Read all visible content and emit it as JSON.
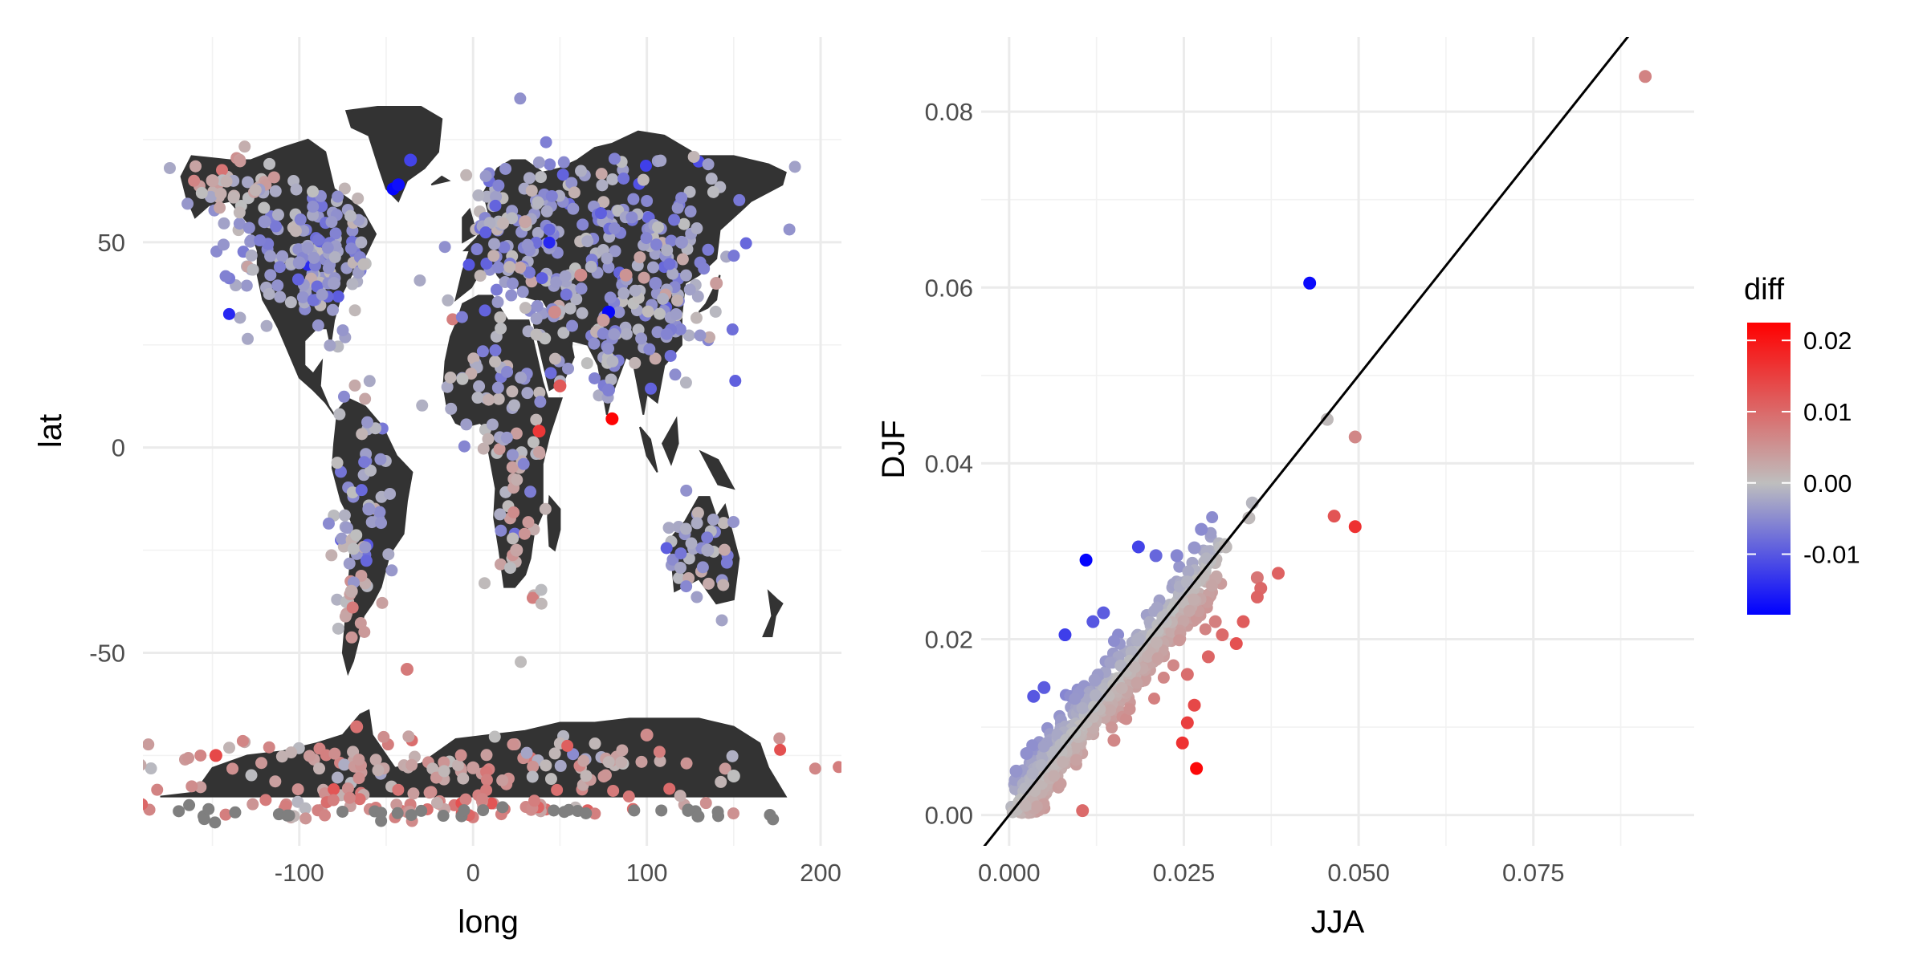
{
  "chart_data": [
    {
      "type": "scatter",
      "subtype": "map",
      "xlabel": "long",
      "ylabel": "lat",
      "xlim": [
        -190,
        212
      ],
      "ylim": [
        -97,
        100
      ],
      "x_ticks": [
        -100,
        0,
        100,
        200
      ],
      "y_ticks": [
        -50,
        0,
        50
      ],
      "x_tick_labels": [
        "-100",
        "0",
        "100",
        "200"
      ],
      "y_tick_labels": [
        "-50",
        "0",
        "50"
      ],
      "grid": true,
      "land_color": "#333333",
      "missing_color": "#7f7f7f",
      "color_by": "diff",
      "points": [
        {
          "x": -46,
          "y": 63,
          "diff": -0.018
        },
        {
          "x": -43,
          "y": 64,
          "diff": -0.017
        },
        {
          "x": -36,
          "y": 70,
          "diff": -0.012
        },
        {
          "x": 78,
          "y": 33,
          "diff": -0.018
        },
        {
          "x": 80,
          "y": 7,
          "diff": 0.022
        },
        {
          "x": 38,
          "y": 4,
          "diff": 0.016
        },
        {
          "x": 50,
          "y": 15,
          "diff": 0.012
        },
        {
          "x": -148,
          "y": -75,
          "diff": 0.014
        },
        {
          "x": -38,
          "y": -54,
          "diff": 0.008
        },
        {
          "x": -67,
          "y": -68,
          "diff": 0.009
        },
        {
          "x": 78,
          "y": 14,
          "diff": -0.006
        },
        {
          "x": 75,
          "y": 31,
          "diff": 0.004
        },
        {
          "x": 62,
          "y": 42,
          "diff": 0.006
        },
        {
          "x": 88,
          "y": 42,
          "diff": 0.005
        },
        {
          "x": 30,
          "y": 55,
          "diff": 0.003
        },
        {
          "x": 47,
          "y": 33,
          "diff": 0.006
        },
        {
          "x": 105,
          "y": 40,
          "diff": -0.005
        },
        {
          "x": 120,
          "y": 50,
          "diff": -0.004
        },
        {
          "x": 140,
          "y": 40,
          "diff": 0.004
        },
        {
          "x": -100,
          "y": 45,
          "diff": -0.004
        },
        {
          "x": -80,
          "y": 40,
          "diff": -0.003
        },
        {
          "x": -120,
          "y": 55,
          "diff": -0.004
        },
        {
          "x": -150,
          "y": 65,
          "diff": 0.003
        },
        {
          "x": -60,
          "y": -15,
          "diff": -0.004
        },
        {
          "x": -70,
          "y": -35,
          "diff": 0.002
        },
        {
          "x": 25,
          "y": -25,
          "diff": 0.003
        },
        {
          "x": 135,
          "y": -25,
          "diff": -0.002
        },
        {
          "x": 0,
          "y": -78,
          "diff": 0.004
        },
        {
          "x": 100,
          "y": -70,
          "diff": 0.006
        },
        {
          "x": 150,
          "y": -80,
          "diff": 0.0
        }
      ]
    },
    {
      "type": "scatter",
      "xlabel": "JJA",
      "ylabel": "DJF",
      "xlim": [
        -0.004,
        0.098
      ],
      "ylim": [
        -0.0035,
        0.0885
      ],
      "x_ticks": [
        0.0,
        0.025,
        0.05,
        0.075
      ],
      "y_ticks": [
        0.0,
        0.02,
        0.04,
        0.06,
        0.08
      ],
      "x_tick_labels": [
        "0.000",
        "0.025",
        "0.050",
        "0.075"
      ],
      "y_tick_labels": [
        "0.00",
        "0.02",
        "0.04",
        "0.06",
        "0.08"
      ],
      "grid": true,
      "reference_line": {
        "slope": 1,
        "intercept": 0,
        "color": "#000000"
      },
      "color_by": "diff",
      "points": [
        {
          "x": 0.091,
          "y": 0.084,
          "diff": 0.007
        },
        {
          "x": 0.043,
          "y": 0.0605,
          "diff": -0.0175
        },
        {
          "x": 0.0455,
          "y": 0.045,
          "diff": 0.0005
        },
        {
          "x": 0.0495,
          "y": 0.043,
          "diff": 0.0065
        },
        {
          "x": 0.0465,
          "y": 0.034,
          "diff": 0.0125
        },
        {
          "x": 0.0495,
          "y": 0.0328,
          "diff": 0.0167
        },
        {
          "x": 0.0348,
          "y": 0.0355,
          "diff": -0.0007
        },
        {
          "x": 0.0343,
          "y": 0.0338,
          "diff": 0.0005
        },
        {
          "x": 0.011,
          "y": 0.029,
          "diff": -0.018
        },
        {
          "x": 0.0275,
          "y": 0.0325,
          "diff": -0.005
        },
        {
          "x": 0.031,
          "y": 0.0305,
          "diff": 0.0005
        },
        {
          "x": 0.0185,
          "y": 0.0305,
          "diff": -0.012
        },
        {
          "x": 0.021,
          "y": 0.0295,
          "diff": -0.0085
        },
        {
          "x": 0.024,
          "y": 0.0295,
          "diff": -0.0055
        },
        {
          "x": 0.0265,
          "y": 0.0304,
          "diff": -0.0039
        },
        {
          "x": 0.0255,
          "y": 0.0265,
          "diff": -0.001
        },
        {
          "x": 0.0355,
          "y": 0.027,
          "diff": 0.0085
        },
        {
          "x": 0.036,
          "y": 0.0258,
          "diff": 0.0102
        },
        {
          "x": 0.0385,
          "y": 0.0275,
          "diff": 0.011
        },
        {
          "x": 0.0355,
          "y": 0.0248,
          "diff": 0.0107
        },
        {
          "x": 0.0335,
          "y": 0.022,
          "diff": 0.0115
        },
        {
          "x": 0.0305,
          "y": 0.0205,
          "diff": 0.01
        },
        {
          "x": 0.0325,
          "y": 0.0195,
          "diff": 0.013
        },
        {
          "x": 0.0285,
          "y": 0.018,
          "diff": 0.0105
        },
        {
          "x": 0.0255,
          "y": 0.016,
          "diff": 0.0095
        },
        {
          "x": 0.0265,
          "y": 0.0125,
          "diff": 0.014
        },
        {
          "x": 0.0255,
          "y": 0.0105,
          "diff": 0.015
        },
        {
          "x": 0.0248,
          "y": 0.0082,
          "diff": 0.0166
        },
        {
          "x": 0.0268,
          "y": 0.0053,
          "diff": 0.0215
        },
        {
          "x": 0.0105,
          "y": 0.0005,
          "diff": 0.01
        },
        {
          "x": 0.012,
          "y": 0.022,
          "diff": -0.01
        },
        {
          "x": 0.0135,
          "y": 0.023,
          "diff": -0.0095
        },
        {
          "x": 0.008,
          "y": 0.0205,
          "diff": -0.0125
        },
        {
          "x": 0.005,
          "y": 0.0145,
          "diff": -0.0095
        },
        {
          "x": 0.0035,
          "y": 0.0135,
          "diff": -0.01
        },
        {
          "x": 0.0025,
          "y": 0.007,
          "diff": -0.0045
        },
        {
          "x": 0.001,
          "y": 0.005,
          "diff": -0.004
        },
        {
          "x": 0.0185,
          "y": 0.02,
          "diff": -0.0015
        },
        {
          "x": 0.022,
          "y": 0.0225,
          "diff": -0.0005
        },
        {
          "x": 0.0295,
          "y": 0.022,
          "diff": 0.0075
        },
        {
          "x": 0.015,
          "y": 0.0085,
          "diff": 0.0065
        }
      ],
      "dense_cluster": {
        "description": "plotted as a dense band of points along the 1:1 line",
        "jja_range": [
          0.002,
          0.03
        ],
        "n_points": 900
      }
    }
  ],
  "legend": {
    "title": "diff",
    "tick_labels": [
      "0.02",
      "0.01",
      "0.00",
      "-0.01"
    ],
    "tick_values": [
      0.02,
      0.01,
      0.0,
      -0.01
    ],
    "range": [
      -0.0185,
      0.0225
    ],
    "colors": {
      "low": "#0000ff",
      "mid": "#bebebe",
      "high": "#ff0000"
    }
  }
}
